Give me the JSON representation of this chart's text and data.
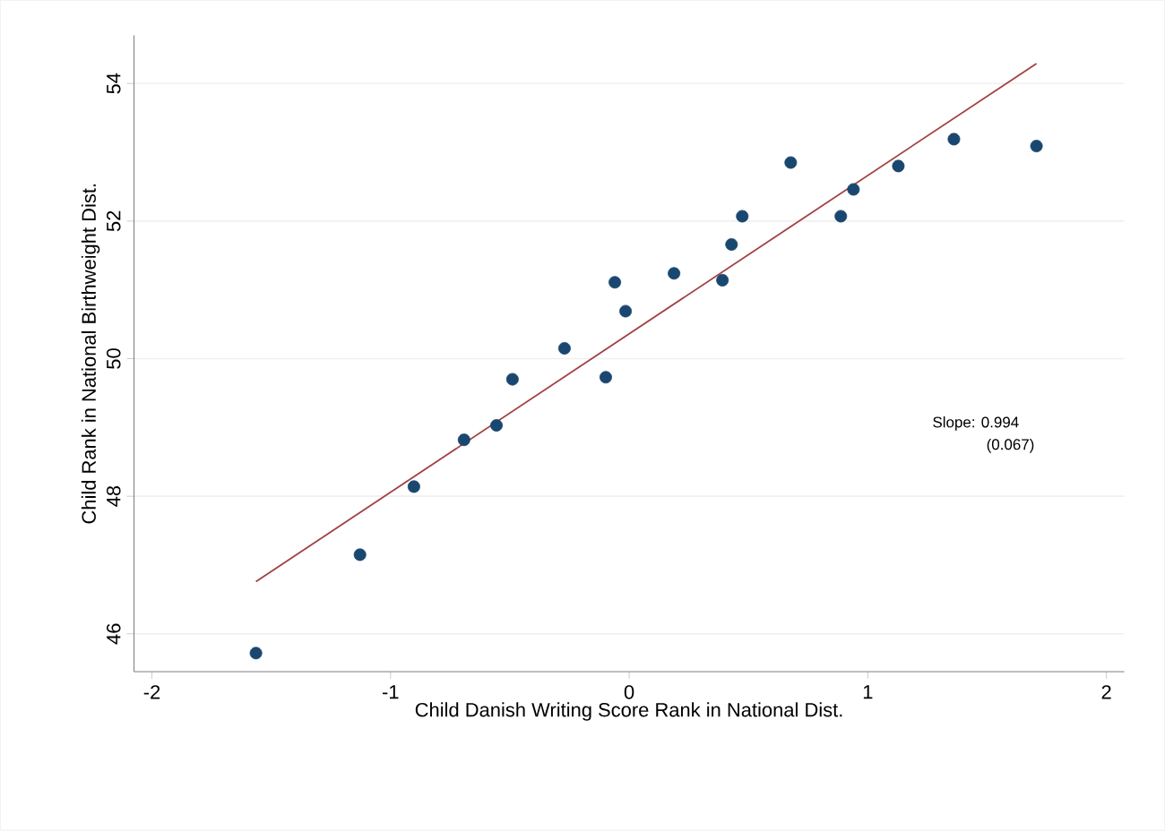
{
  "chart_data": {
    "type": "scatter",
    "xlabel": "Child Danish Writing Score Rank in National Dist.",
    "ylabel": "Child Rank in National Birthweight Dist.",
    "series": [
      {
        "color": "#1a476f",
        "marker": "circle",
        "x": [
          -1.564,
          -1.128,
          -0.902,
          -0.692,
          -0.556,
          -0.489,
          -0.271,
          -0.098,
          -0.06,
          -0.015,
          0.188,
          0.391,
          0.429,
          0.474,
          0.677,
          0.887,
          0.94,
          1.128,
          1.361,
          1.707
        ],
        "values": [
          45.72,
          47.15,
          48.14,
          48.82,
          49.03,
          49.7,
          50.15,
          49.73,
          51.11,
          50.69,
          51.24,
          51.14,
          51.66,
          52.07,
          52.85,
          52.07,
          52.46,
          52.8,
          53.19,
          53.09
        ]
      },
      {
        "type": "line",
        "color": "#a0403f",
        "x": [
          -1.564,
          1.707
        ],
        "values": [
          46.76,
          54.29
        ]
      }
    ],
    "annotations": [
      "Slope: 0.994",
      "(0.067)"
    ],
    "xlim": [
      -2.075,
      2.075
    ],
    "ylim": [
      45.45,
      54.7
    ],
    "xticks": [
      -2,
      -1,
      0,
      1,
      2
    ],
    "yticks": [
      46,
      48,
      50,
      52,
      54
    ],
    "grid": "y"
  }
}
